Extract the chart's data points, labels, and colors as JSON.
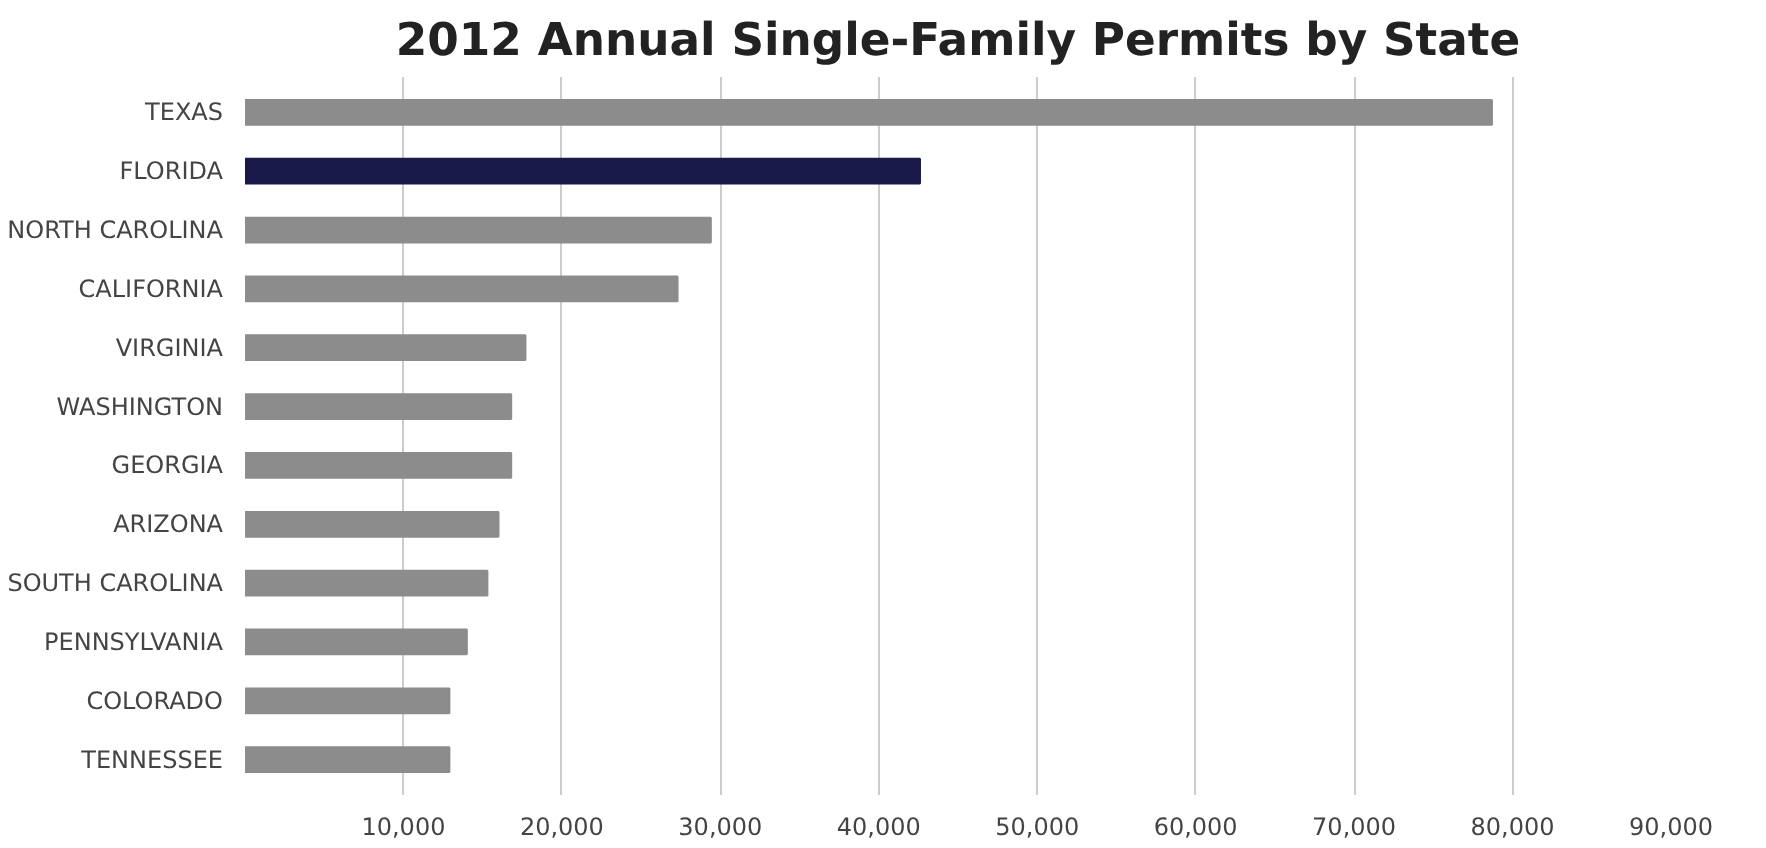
{
  "chart_data": {
    "type": "bar",
    "orientation": "horizontal",
    "title": "2012 Annual Single-Family Permits by State",
    "categories": [
      "TEXAS",
      "FLORIDA",
      "NORTH CAROLINA",
      "CALIFORNIA",
      "VIRGINIA",
      "WASHINGTON",
      "GEORGIA",
      "ARIZONA",
      "SOUTH CAROLINA",
      "PENNSYLVANIA",
      "COLORADO",
      "TENNESSEE"
    ],
    "values": [
      78700,
      42600,
      29400,
      27300,
      17700,
      16800,
      16800,
      16000,
      15300,
      14000,
      12900,
      12900
    ],
    "colors": [
      "#8c8c8c",
      "#1a1a4a",
      "#8c8c8c",
      "#8c8c8c",
      "#8c8c8c",
      "#8c8c8c",
      "#8c8c8c",
      "#8c8c8c",
      "#8c8c8c",
      "#8c8c8c",
      "#8c8c8c",
      "#8c8c8c"
    ],
    "xlim": [
      0,
      90000
    ],
    "xticks": [
      {
        "value": 10000,
        "label": "10,000"
      },
      {
        "value": 20000,
        "label": "20,000"
      },
      {
        "value": 30000,
        "label": "30,000"
      },
      {
        "value": 40000,
        "label": "40,000"
      },
      {
        "value": 50000,
        "label": "50,000"
      },
      {
        "value": 60000,
        "label": "60,000"
      },
      {
        "value": 70000,
        "label": "70,000"
      },
      {
        "value": 80000,
        "label": "80,000"
      },
      {
        "value": 90000,
        "label": "90,000"
      }
    ],
    "grid": "x"
  }
}
